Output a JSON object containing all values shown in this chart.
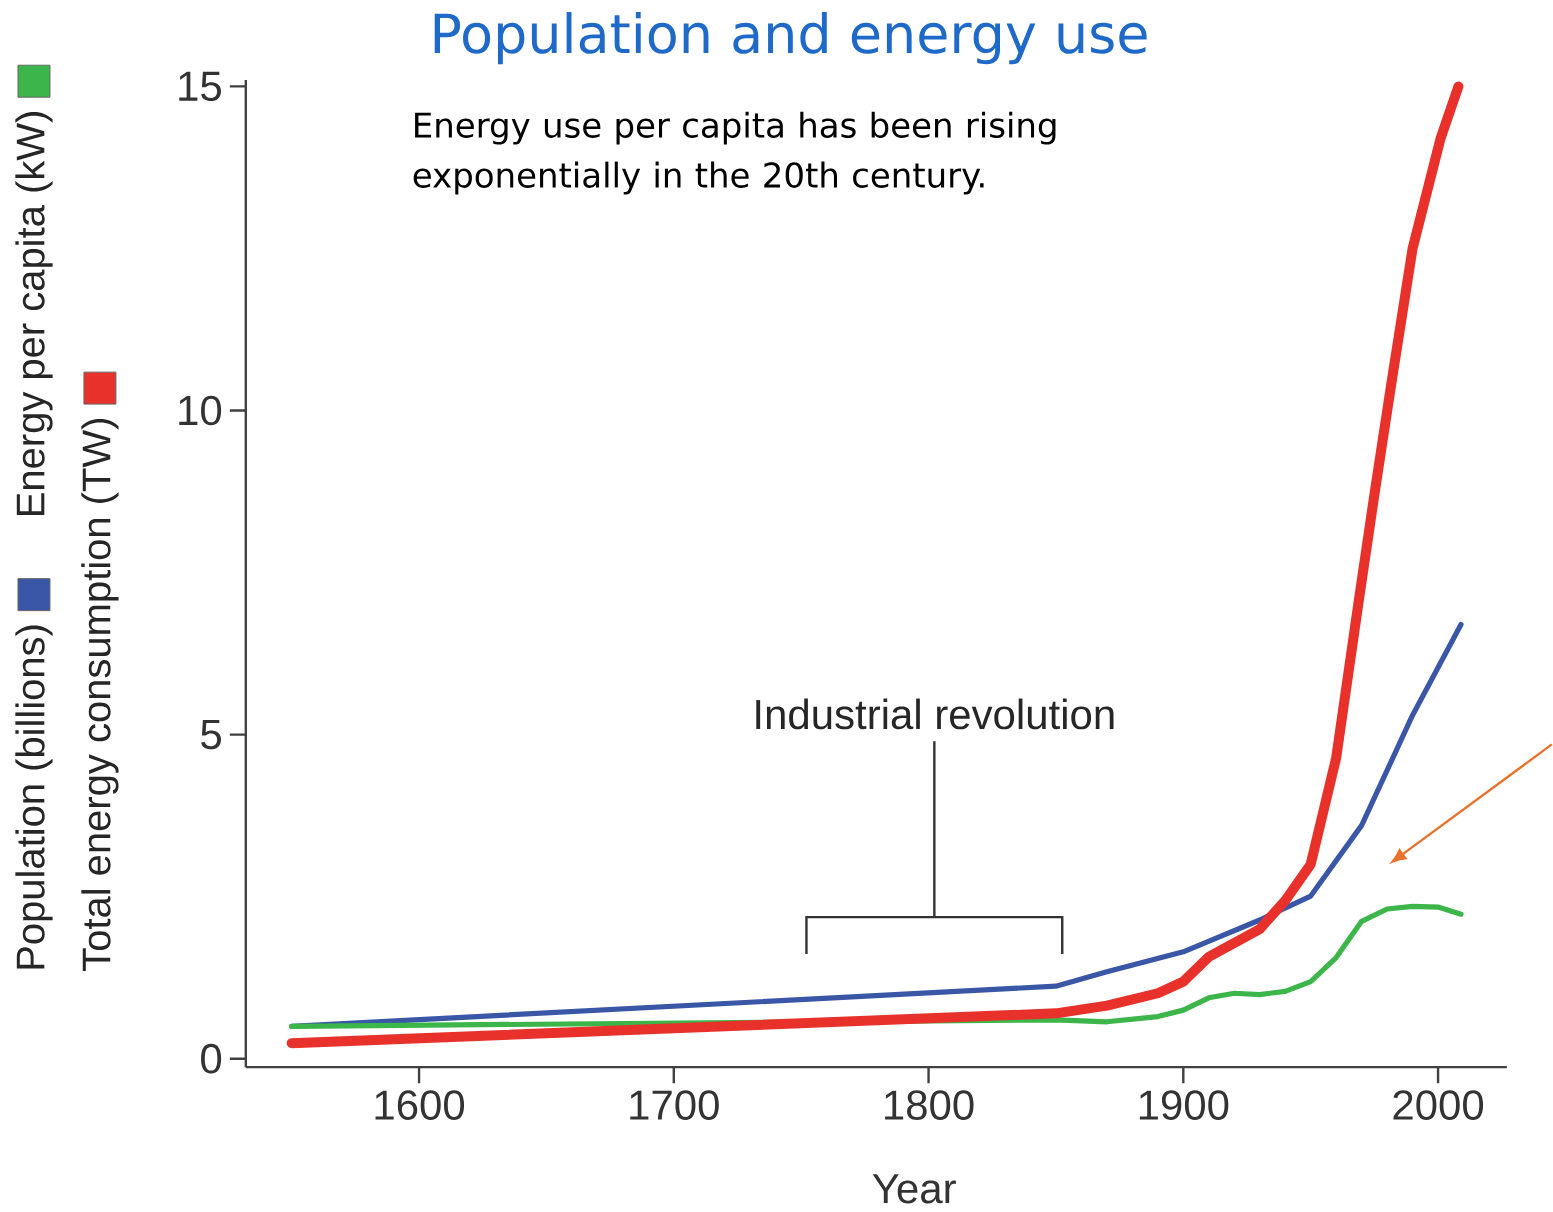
{
  "chart_data": {
    "type": "line",
    "title": "Population and energy use",
    "xlabel": "Year",
    "annotations": [
      "Energy use per capita has been rising exponentially in the 20th century.",
      "Industrial revolution"
    ],
    "xlim": [
      1532,
      2027
    ],
    "ylim": [
      -0.13,
      15.1
    ],
    "xticks": [
      1600,
      1700,
      1800,
      1900,
      2000
    ],
    "yticks": [
      0,
      5,
      10,
      15
    ],
    "grid": false,
    "legend": "left",
    "marker": "none",
    "line_style": "solid",
    "series": [
      {
        "name": "Population (billions)",
        "color": "#3a56a6",
        "x": [
          1550,
          1850,
          1870,
          1900,
          1930,
          1950,
          1970,
          1990,
          2009
        ],
        "values": [
          0.5,
          1.12,
          1.34,
          1.65,
          2.14,
          2.51,
          3.6,
          5.3,
          6.7
        ]
      },
      {
        "name": "Energy per capita (kW)",
        "color": "#3cb54a",
        "x": [
          1550,
          1850,
          1870,
          1890,
          1900,
          1910,
          1920,
          1930,
          1940,
          1950,
          1960,
          1970,
          1980,
          1990,
          2000,
          2009
        ],
        "values": [
          0.5,
          0.6,
          0.57,
          0.65,
          0.75,
          0.94,
          1.01,
          0.99,
          1.04,
          1.19,
          1.56,
          2.12,
          2.31,
          2.35,
          2.34,
          2.23
        ]
      },
      {
        "name": "Total energy consumption (TW)",
        "color": "#e8312a",
        "x": [
          1550,
          1850,
          1870,
          1890,
          1900,
          1910,
          1930,
          1940,
          1950,
          1960,
          1969,
          1975,
          1982,
          1990,
          2001,
          2008
        ],
        "values": [
          0.24,
          0.7,
          0.82,
          1.01,
          1.19,
          1.57,
          2.0,
          2.44,
          3.0,
          4.64,
          7.1,
          8.7,
          10.5,
          12.5,
          14.2,
          15.0
        ]
      }
    ]
  }
}
